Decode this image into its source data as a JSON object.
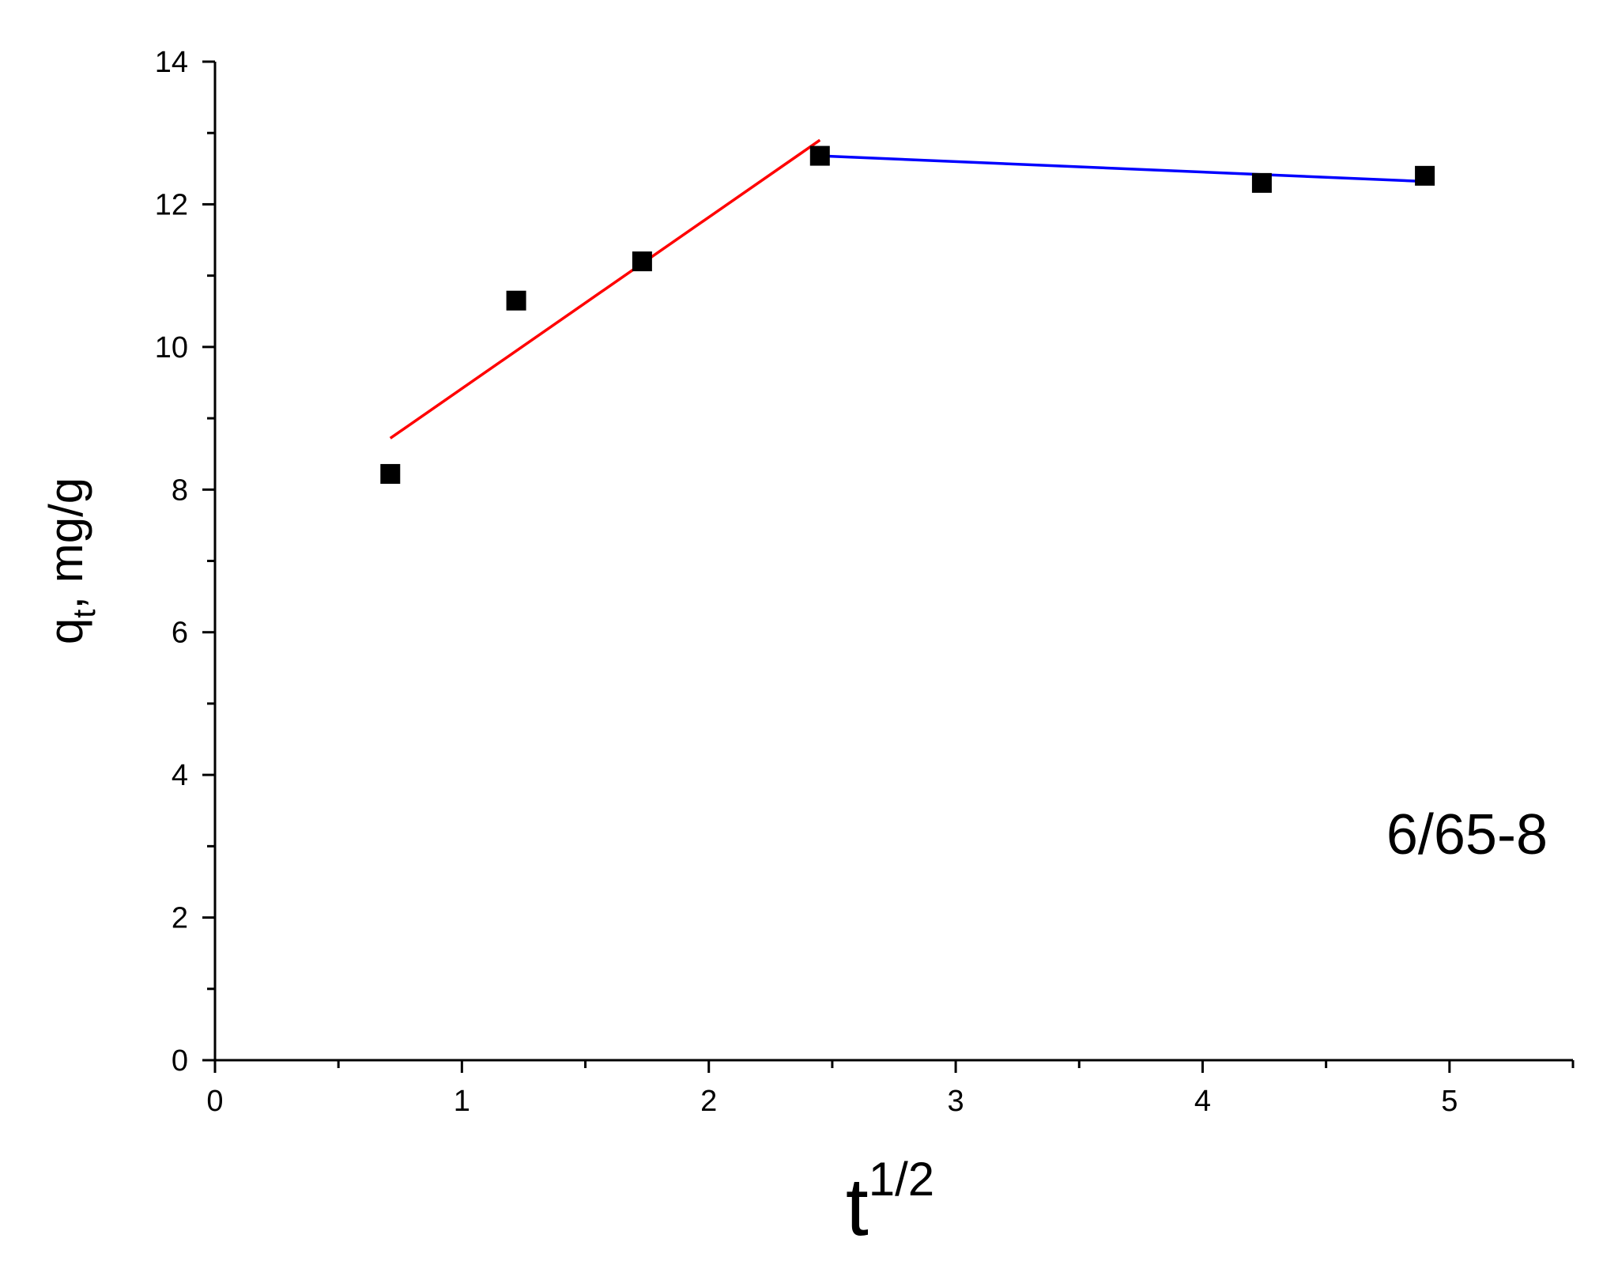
{
  "chart_data": {
    "type": "scatter",
    "title": "",
    "xlabel": {
      "base": "t",
      "superscript": "1/2"
    },
    "ylabel": {
      "base": "q",
      "subscript": "t",
      "suffix": ", mg/g"
    },
    "xlim": [
      0,
      5.5
    ],
    "ylim": [
      0,
      14
    ],
    "x_ticks": [
      0,
      1,
      2,
      3,
      4,
      5
    ],
    "x_tick_labels": [
      "0",
      "1",
      "2",
      "3",
      "4",
      "5"
    ],
    "y_ticks": [
      0,
      2,
      4,
      6,
      8,
      10,
      12,
      14
    ],
    "y_tick_labels": [
      "0",
      "2",
      "4",
      "6",
      "8",
      "10",
      "12",
      "14"
    ],
    "grid": false,
    "legend": "none",
    "points": {
      "x": [
        0.71,
        1.22,
        1.73,
        2.45,
        4.24,
        4.9
      ],
      "y": [
        8.22,
        10.65,
        11.2,
        12.68,
        12.3,
        12.4
      ],
      "marker": "square",
      "color": "#000000"
    },
    "fit_lines": [
      {
        "x": [
          0.71,
          2.45
        ],
        "y": [
          8.72,
          12.9
        ],
        "color": "#ff0000"
      },
      {
        "x": [
          2.45,
          4.9
        ],
        "y": [
          12.68,
          12.32
        ],
        "color": "#0000ff"
      }
    ],
    "annotation": "6/65-8"
  }
}
